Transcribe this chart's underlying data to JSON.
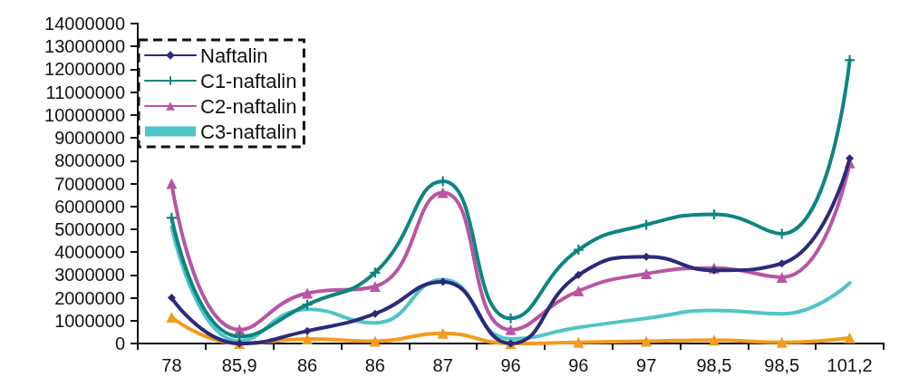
{
  "chart_data": {
    "type": "line",
    "categories": [
      "78",
      "85,9",
      "86",
      "86",
      "87",
      "96",
      "96",
      "97",
      "98,5",
      "98,5",
      "101,2"
    ],
    "ylim": [
      0,
      14000000
    ],
    "yticks": [
      0,
      1000000,
      2000000,
      3000000,
      4000000,
      5000000,
      6000000,
      7000000,
      8000000,
      9000000,
      10000000,
      11000000,
      12000000,
      13000000,
      14000000
    ],
    "grid": false,
    "legend": "top left",
    "line_style": "solid",
    "series": [
      {
        "name": "Naftalin",
        "color": "#2b2a7a",
        "marker": "diamond",
        "values": [
          2000000,
          0,
          550000,
          1300000,
          2700000,
          0,
          3000000,
          3800000,
          3200000,
          3500000,
          8100000
        ]
      },
      {
        "name": "C1-naftalin",
        "color": "#0e8580",
        "marker": "cross",
        "values": [
          5500000,
          300000,
          1700000,
          3100000,
          7100000,
          1100000,
          4100000,
          5200000,
          5650000,
          4800000,
          12400000
        ]
      },
      {
        "name": "C2-naftalin",
        "color": "#b855a4",
        "marker": "triangle",
        "values": [
          7000000,
          600000,
          2200000,
          2500000,
          6600000,
          600000,
          2300000,
          3050000,
          3300000,
          2900000,
          7900000
        ]
      },
      {
        "name": "C3-naftalin",
        "color": "#4fc4c8",
        "marker": "none",
        "values": [
          5100000,
          100000,
          1500000,
          900000,
          2800000,
          200000,
          700000,
          1100000,
          1450000,
          1300000,
          2650000
        ]
      },
      {
        "color": "#f49a1e",
        "marker": "triangle",
        "values": [
          1150000,
          0,
          200000,
          100000,
          450000,
          0,
          50000,
          100000,
          150000,
          50000,
          250000
        ]
      }
    ]
  }
}
